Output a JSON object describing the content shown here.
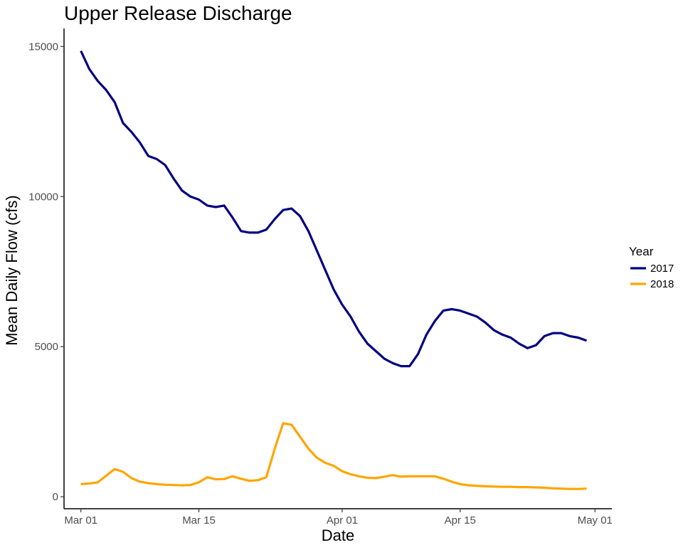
{
  "chart_data": {
    "type": "line",
    "title": "Upper Release Discharge",
    "xlabel": "Date",
    "ylabel": "Mean Daily Flow (cfs)",
    "x_ticks": [
      "Mar 01",
      "Mar 15",
      "Apr 01",
      "Apr 15",
      "May 01"
    ],
    "y_ticks": [
      "0",
      "5000",
      "10000",
      "15000"
    ],
    "ylim": [
      -400,
      15600
    ],
    "xlim": [
      "2017-02-27",
      "2017-05-01"
    ],
    "grid": false,
    "legend": {
      "title": "Year",
      "position": "right"
    },
    "series": [
      {
        "name": "2017",
        "color": "#000080",
        "x": [
          "Mar 01",
          "Mar 02",
          "Mar 03",
          "Mar 04",
          "Mar 05",
          "Mar 06",
          "Mar 07",
          "Mar 08",
          "Mar 09",
          "Mar 10",
          "Mar 11",
          "Mar 12",
          "Mar 13",
          "Mar 14",
          "Mar 15",
          "Mar 16",
          "Mar 17",
          "Mar 18",
          "Mar 19",
          "Mar 20",
          "Mar 21",
          "Mar 22",
          "Mar 23",
          "Mar 24",
          "Mar 25",
          "Mar 26",
          "Mar 27",
          "Mar 28",
          "Mar 29",
          "Mar 30",
          "Mar 31",
          "Apr 01",
          "Apr 02",
          "Apr 03",
          "Apr 04",
          "Apr 05",
          "Apr 06",
          "Apr 07",
          "Apr 08",
          "Apr 09",
          "Apr 10",
          "Apr 11",
          "Apr 12",
          "Apr 13",
          "Apr 14",
          "Apr 15",
          "Apr 16",
          "Apr 17",
          "Apr 18",
          "Apr 19",
          "Apr 20",
          "Apr 21",
          "Apr 22",
          "Apr 23",
          "Apr 24",
          "Apr 25",
          "Apr 26",
          "Apr 27",
          "Apr 28",
          "Apr 29",
          "Apr 30"
        ],
        "values": [
          14850,
          14250,
          13850,
          13550,
          13150,
          12450,
          12150,
          11800,
          11350,
          11250,
          11050,
          10600,
          10200,
          10000,
          9900,
          9700,
          9650,
          9700,
          9300,
          8850,
          8800,
          8800,
          8900,
          9250,
          9550,
          9600,
          9350,
          8850,
          8200,
          7550,
          6900,
          6400,
          6000,
          5500,
          5100,
          4850,
          4600,
          4450,
          4350,
          4350,
          4750,
          5400,
          5850,
          6200,
          6250,
          6200,
          6100,
          6000,
          5800,
          5550,
          5400,
          5300,
          5100,
          4950,
          5050,
          5350,
          5450,
          5450,
          5350,
          5300,
          5200
        ]
      },
      {
        "name": "2018",
        "color": "#FFA500",
        "x": [
          "Mar 01",
          "Mar 02",
          "Mar 03",
          "Mar 04",
          "Mar 05",
          "Mar 06",
          "Mar 07",
          "Mar 08",
          "Mar 09",
          "Mar 10",
          "Mar 11",
          "Mar 12",
          "Mar 13",
          "Mar 14",
          "Mar 15",
          "Mar 16",
          "Mar 17",
          "Mar 18",
          "Mar 19",
          "Mar 20",
          "Mar 21",
          "Mar 22",
          "Mar 23",
          "Mar 24",
          "Mar 25",
          "Mar 26",
          "Mar 27",
          "Mar 28",
          "Mar 29",
          "Mar 30",
          "Mar 31",
          "Apr 01",
          "Apr 02",
          "Apr 03",
          "Apr 04",
          "Apr 05",
          "Apr 06",
          "Apr 07",
          "Apr 08",
          "Apr 09",
          "Apr 10",
          "Apr 11",
          "Apr 12",
          "Apr 13",
          "Apr 14",
          "Apr 15",
          "Apr 16",
          "Apr 17",
          "Apr 18",
          "Apr 19",
          "Apr 20",
          "Apr 21",
          "Apr 22",
          "Apr 23",
          "Apr 24",
          "Apr 25",
          "Apr 26",
          "Apr 27",
          "Apr 28",
          "Apr 29",
          "Apr 30"
        ],
        "values": [
          420,
          440,
          480,
          700,
          920,
          830,
          620,
          500,
          450,
          420,
          400,
          390,
          380,
          390,
          480,
          650,
          580,
          590,
          680,
          600,
          530,
          550,
          650,
          1600,
          2450,
          2400,
          2000,
          1600,
          1300,
          1130,
          1030,
          850,
          750,
          680,
          630,
          620,
          670,
          720,
          670,
          680,
          680,
          680,
          680,
          600,
          500,
          420,
          380,
          360,
          350,
          340,
          330,
          330,
          320,
          320,
          310,
          300,
          280,
          270,
          260,
          260,
          270
        ]
      }
    ]
  }
}
